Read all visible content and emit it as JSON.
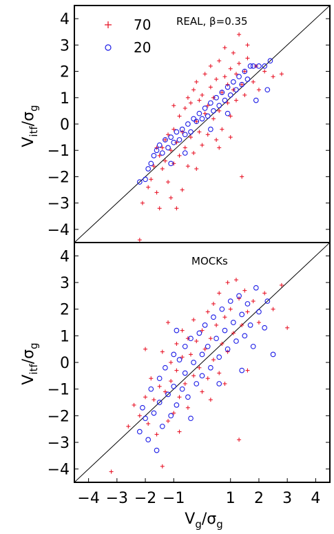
{
  "chart_data": [
    {
      "type": "scatter",
      "title": "REAL, β=0.35",
      "xlabel": "",
      "ylabel": "V_itf/σ_g",
      "ylabel_parts": {
        "v": "V",
        "v_sub": "itf",
        "slash": "/σ",
        "s_sub": "g"
      },
      "xlim": [
        -4.5,
        4.5
      ],
      "ylim": [
        -4.5,
        4.5
      ],
      "yticks": [
        "−4",
        "−3",
        "−2",
        "−1",
        "0",
        "1",
        "2",
        "3",
        "4"
      ],
      "ytick_values": [
        -4,
        -3,
        -2,
        -1,
        0,
        1,
        2,
        3,
        4
      ],
      "reference_line": "y = x",
      "legend": {
        "position": "top-left"
      },
      "series": [
        {
          "name": "70",
          "marker": "+",
          "color": "#e8182a",
          "points": [
            [
              -2.2,
              -4.4
            ],
            [
              -2.1,
              -3.0
            ],
            [
              -1.9,
              -2.4
            ],
            [
              -1.8,
              -2.1
            ],
            [
              -1.7,
              -1.6
            ],
            [
              -1.6,
              -2.6
            ],
            [
              -1.5,
              -1.2
            ],
            [
              -1.5,
              -3.2
            ],
            [
              -1.4,
              -0.9
            ],
            [
              -1.4,
              -1.7
            ],
            [
              -1.3,
              -0.6
            ],
            [
              -1.3,
              -1.4
            ],
            [
              -1.2,
              -2.2
            ],
            [
              -1.2,
              -0.4
            ],
            [
              -1.1,
              -1.0
            ],
            [
              -1.1,
              -2.8
            ],
            [
              -1.0,
              -0.2
            ],
            [
              -1.0,
              -1.5
            ],
            [
              -0.9,
              -0.7
            ],
            [
              -0.9,
              -3.2
            ],
            [
              -0.8,
              0.3
            ],
            [
              -0.8,
              -1.2
            ],
            [
              -0.7,
              -0.3
            ],
            [
              -0.7,
              -2.5
            ],
            [
              -0.6,
              0.6
            ],
            [
              -0.6,
              -0.9
            ],
            [
              -0.5,
              1.0
            ],
            [
              -0.5,
              -1.6
            ],
            [
              -0.4,
              -0.5
            ],
            [
              -0.4,
              0.8
            ],
            [
              -0.3,
              1.3
            ],
            [
              -0.3,
              -1.1
            ],
            [
              -0.2,
              0.1
            ],
            [
              -0.2,
              1.6
            ],
            [
              -0.1,
              -0.3
            ],
            [
              -0.1,
              0.9
            ],
            [
              0.0,
              1.1
            ],
            [
              0.0,
              -0.8
            ],
            [
              0.1,
              0.4
            ],
            [
              0.1,
              1.9
            ],
            [
              0.2,
              -0.4
            ],
            [
              0.2,
              0.7
            ],
            [
              0.3,
              1.4
            ],
            [
              0.3,
              2.2
            ],
            [
              0.4,
              0.2
            ],
            [
              0.4,
              1.0
            ],
            [
              0.5,
              1.7
            ],
            [
              0.5,
              -0.6
            ],
            [
              0.6,
              0.5
            ],
            [
              0.6,
              2.4
            ],
            [
              0.7,
              1.2
            ],
            [
              0.7,
              -0.2
            ],
            [
              0.8,
              1.8
            ],
            [
              0.8,
              2.9
            ],
            [
              0.9,
              0.8
            ],
            [
              0.9,
              1.5
            ],
            [
              1.0,
              2.1
            ],
            [
              1.0,
              0.3
            ],
            [
              1.1,
              1.3
            ],
            [
              1.1,
              2.7
            ],
            [
              1.2,
              1.9
            ],
            [
              1.2,
              0.9
            ],
            [
              1.3,
              3.4
            ],
            [
              1.3,
              2.3
            ],
            [
              1.4,
              1.5
            ],
            [
              1.4,
              -2.0
            ],
            [
              1.5,
              2.0
            ],
            [
              1.5,
              1.1
            ],
            [
              1.6,
              2.5
            ],
            [
              1.6,
              3.0
            ],
            [
              1.8,
              1.6
            ],
            [
              1.9,
              2.2
            ],
            [
              2.0,
              1.3
            ],
            [
              2.2,
              2.0
            ],
            [
              2.5,
              1.8
            ],
            [
              2.8,
              1.9
            ],
            [
              -1.6,
              -0.9
            ],
            [
              -1.0,
              0.7
            ],
            [
              -0.2,
              -1.7
            ],
            [
              0.6,
              -0.9
            ],
            [
              1.0,
              -0.5
            ]
          ]
        },
        {
          "name": "20",
          "marker": "o",
          "color": "#1a1ae6",
          "points": [
            [
              -2.2,
              -2.2
            ],
            [
              -2.0,
              -2.1
            ],
            [
              -1.9,
              -1.7
            ],
            [
              -1.8,
              -1.5
            ],
            [
              -1.7,
              -1.2
            ],
            [
              -1.6,
              -1.0
            ],
            [
              -1.5,
              -0.8
            ],
            [
              -1.4,
              -1.1
            ],
            [
              -1.3,
              -0.6
            ],
            [
              -1.2,
              -0.9
            ],
            [
              -1.1,
              -0.5
            ],
            [
              -1.0,
              -0.7
            ],
            [
              -0.9,
              -0.3
            ],
            [
              -0.8,
              -0.6
            ],
            [
              -0.7,
              -0.2
            ],
            [
              -0.6,
              -0.4
            ],
            [
              -0.5,
              0.0
            ],
            [
              -0.4,
              -0.3
            ],
            [
              -0.3,
              0.2
            ],
            [
              -0.2,
              0.1
            ],
            [
              -0.1,
              0.4
            ],
            [
              0.0,
              0.2
            ],
            [
              0.1,
              0.6
            ],
            [
              0.2,
              0.3
            ],
            [
              0.3,
              0.8
            ],
            [
              0.4,
              0.5
            ],
            [
              0.5,
              1.0
            ],
            [
              0.6,
              0.7
            ],
            [
              0.7,
              1.2
            ],
            [
              0.8,
              0.9
            ],
            [
              0.9,
              1.4
            ],
            [
              1.0,
              1.1
            ],
            [
              1.1,
              1.6
            ],
            [
              1.2,
              1.3
            ],
            [
              1.3,
              1.8
            ],
            [
              1.4,
              1.5
            ],
            [
              1.5,
              2.0
            ],
            [
              1.6,
              1.7
            ],
            [
              1.7,
              2.2
            ],
            [
              1.8,
              2.2
            ],
            [
              2.0,
              2.2
            ],
            [
              2.2,
              2.2
            ],
            [
              2.4,
              2.4
            ],
            [
              2.3,
              1.3
            ],
            [
              1.9,
              0.9
            ],
            [
              -1.1,
              -1.5
            ],
            [
              -0.6,
              -1.1
            ],
            [
              0.3,
              -0.2
            ],
            [
              0.9,
              0.4
            ]
          ]
        }
      ]
    },
    {
      "type": "scatter",
      "title": "MOCKs",
      "xlabel": "V_g/σ_g",
      "xlabel_parts": {
        "v": "V",
        "v_sub": "g",
        "slash": "/σ",
        "s_sub": "g"
      },
      "ylabel": "V_itf/σ_g",
      "ylabel_parts": {
        "v": "V",
        "v_sub": "itf",
        "slash": "/σ",
        "s_sub": "g"
      },
      "xlim": [
        -4.5,
        4.5
      ],
      "ylim": [
        -4.5,
        4.5
      ],
      "xticks": [
        "−4",
        "−3",
        "−2",
        "−1",
        "1",
        "2",
        "3",
        "4"
      ],
      "xtick_values": [
        -4,
        -3,
        -2,
        -1,
        1,
        2,
        3,
        4
      ],
      "yticks": [
        "−4",
        "−3",
        "−2",
        "−1",
        "0",
        "1",
        "2",
        "3",
        "4"
      ],
      "ytick_values": [
        -4,
        -3,
        -2,
        -1,
        0,
        1,
        2,
        3,
        4
      ],
      "reference_line": "y = x",
      "series": [
        {
          "name": "70",
          "marker": "+",
          "color": "#e8182a",
          "points": [
            [
              -3.2,
              -4.1
            ],
            [
              -2.6,
              -2.4
            ],
            [
              -2.4,
              -1.6
            ],
            [
              -2.2,
              -2.0
            ],
            [
              -2.0,
              -1.3
            ],
            [
              -1.9,
              -2.3
            ],
            [
              -1.8,
              -0.6
            ],
            [
              -1.7,
              -1.4
            ],
            [
              -1.6,
              -2.7
            ],
            [
              -1.5,
              -0.9
            ],
            [
              -1.4,
              -3.9
            ],
            [
              -1.4,
              0.4
            ],
            [
              -1.3,
              -1.1
            ],
            [
              -1.2,
              -2.2
            ],
            [
              -1.1,
              0.0
            ],
            [
              -1.1,
              -0.7
            ],
            [
              -1.0,
              -1.9
            ],
            [
              -0.9,
              0.7
            ],
            [
              -0.9,
              -0.3
            ],
            [
              -0.8,
              -1.3
            ],
            [
              -0.7,
              1.2
            ],
            [
              -0.7,
              0.2
            ],
            [
              -0.6,
              -0.8
            ],
            [
              -0.5,
              0.9
            ],
            [
              -0.5,
              -1.7
            ],
            [
              -0.4,
              0.3
            ],
            [
              -0.3,
              1.6
            ],
            [
              -0.3,
              -0.5
            ],
            [
              -0.2,
              0.8
            ],
            [
              -0.1,
              -0.2
            ],
            [
              0.0,
              1.2
            ],
            [
              0.0,
              -1.1
            ],
            [
              0.1,
              0.5
            ],
            [
              0.2,
              1.9
            ],
            [
              0.2,
              -0.6
            ],
            [
              0.3,
              0.9
            ],
            [
              0.4,
              2.2
            ],
            [
              0.4,
              0.1
            ],
            [
              0.5,
              1.4
            ],
            [
              0.6,
              -0.4
            ],
            [
              0.6,
              2.6
            ],
            [
              0.7,
              0.7
            ],
            [
              0.8,
              1.7
            ],
            [
              0.9,
              3.0
            ],
            [
              0.9,
              0.4
            ],
            [
              1.0,
              2.0
            ],
            [
              1.1,
              1.1
            ],
            [
              1.2,
              3.1
            ],
            [
              1.3,
              2.4
            ],
            [
              1.3,
              -2.9
            ],
            [
              1.4,
              1.4
            ],
            [
              1.5,
              2.7
            ],
            [
              1.6,
              1.9
            ],
            [
              1.8,
              2.3
            ],
            [
              2.0,
              1.5
            ],
            [
              2.2,
              2.6
            ],
            [
              2.5,
              2.0
            ],
            [
              2.8,
              2.9
            ],
            [
              3.0,
              1.3
            ],
            [
              -2.0,
              0.5
            ],
            [
              -1.2,
              1.5
            ],
            [
              -0.8,
              -2.6
            ],
            [
              0.3,
              -1.4
            ],
            [
              0.8,
              -0.8
            ],
            [
              1.6,
              -0.3
            ]
          ]
        },
        {
          "name": "20",
          "marker": "o",
          "color": "#1a1ae6",
          "points": [
            [
              -2.2,
              -2.6
            ],
            [
              -2.1,
              -1.7
            ],
            [
              -2.0,
              -2.1
            ],
            [
              -1.9,
              -2.9
            ],
            [
              -1.8,
              -1.0
            ],
            [
              -1.7,
              -1.9
            ],
            [
              -1.6,
              -3.3
            ],
            [
              -1.5,
              -0.6
            ],
            [
              -1.5,
              -1.5
            ],
            [
              -1.4,
              -2.4
            ],
            [
              -1.3,
              -0.2
            ],
            [
              -1.2,
              -1.2
            ],
            [
              -1.1,
              -2.0
            ],
            [
              -1.0,
              0.3
            ],
            [
              -1.0,
              -0.9
            ],
            [
              -0.9,
              -1.6
            ],
            [
              -0.8,
              0.1
            ],
            [
              -0.7,
              -1.0
            ],
            [
              -0.6,
              0.6
            ],
            [
              -0.6,
              -0.4
            ],
            [
              -0.5,
              -1.3
            ],
            [
              -0.4,
              0.9
            ],
            [
              -0.3,
              0.0
            ],
            [
              -0.2,
              -0.8
            ],
            [
              -0.1,
              1.1
            ],
            [
              0.0,
              0.3
            ],
            [
              0.0,
              -0.5
            ],
            [
              0.1,
              1.4
            ],
            [
              0.2,
              0.6
            ],
            [
              0.3,
              -0.2
            ],
            [
              0.4,
              1.7
            ],
            [
              0.5,
              0.9
            ],
            [
              0.6,
              0.2
            ],
            [
              0.7,
              2.0
            ],
            [
              0.8,
              1.2
            ],
            [
              0.9,
              0.5
            ],
            [
              1.0,
              2.3
            ],
            [
              1.1,
              1.5
            ],
            [
              1.2,
              0.8
            ],
            [
              1.3,
              2.5
            ],
            [
              1.4,
              1.8
            ],
            [
              1.5,
              1.0
            ],
            [
              1.6,
              2.2
            ],
            [
              1.7,
              1.4
            ],
            [
              1.8,
              0.6
            ],
            [
              1.9,
              2.8
            ],
            [
              2.0,
              1.9
            ],
            [
              2.2,
              1.3
            ],
            [
              2.3,
              2.3
            ],
            [
              2.5,
              0.3
            ],
            [
              -0.9,
              1.2
            ],
            [
              -0.4,
              -2.1
            ],
            [
              0.6,
              -0.8
            ],
            [
              1.4,
              -0.3
            ]
          ]
        }
      ]
    }
  ]
}
